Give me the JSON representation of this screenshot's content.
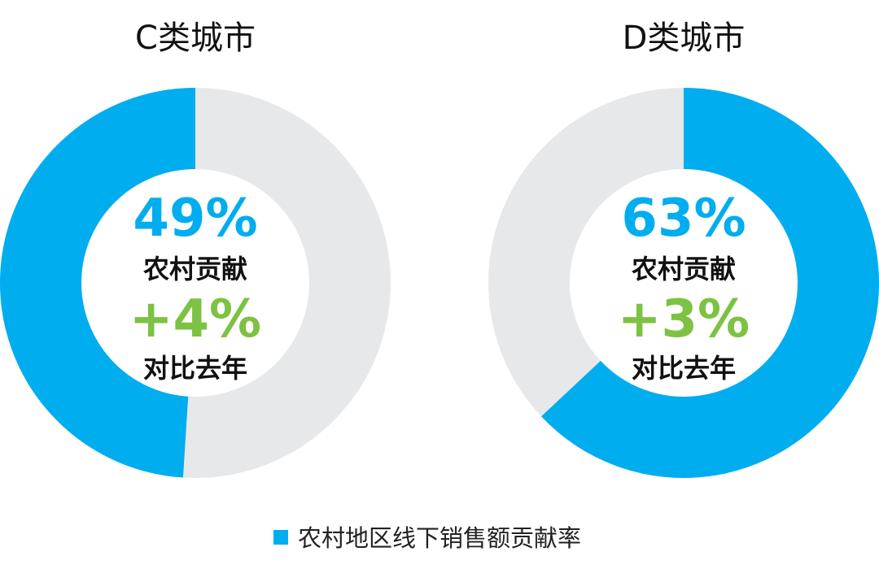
{
  "colors": {
    "share": "#00ADEF",
    "remainder": "#E6E8EA",
    "percent_text": "#00ADEF",
    "delta_text": "#7DC242",
    "label_text": "#111111"
  },
  "legend": {
    "label": "农村地区线下销售额贡献率"
  },
  "chart_data": [
    {
      "type": "pie",
      "title": "C类城市",
      "value": 49,
      "value_label": "49%",
      "value_caption": "农村贡献",
      "change": 4,
      "change_label": "+4%",
      "change_caption": "对比去年",
      "series": [
        {
          "name": "农村地区线下销售额贡献率",
          "values": [
            49
          ]
        }
      ],
      "ylim": [
        0,
        100
      ]
    },
    {
      "type": "pie",
      "title": "D类城市",
      "value": 63,
      "value_label": "63%",
      "value_caption": "农村贡献",
      "change": 3,
      "change_label": "+3%",
      "change_caption": "对比去年",
      "series": [
        {
          "name": "农村地区线下销售额贡献率",
          "values": [
            63
          ]
        }
      ],
      "ylim": [
        0,
        100
      ]
    }
  ]
}
